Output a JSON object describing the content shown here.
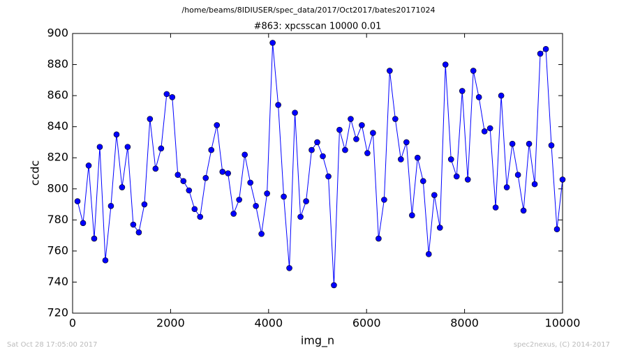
{
  "chart_data": {
    "type": "line",
    "suptitle": "/home/beams/8IDIUSER/spec_data/2017/Oct2017/bates20171024",
    "title": "#863: xpcsscan 10000 0.01",
    "x_label": "img_n",
    "y_label": "ccdc",
    "footer_left": "Sat Oct 28 17:05:00 2017",
    "footer_right": "spec2nexus, (C) 2014-2017",
    "x": [
      100,
      214,
      328,
      441,
      555,
      669,
      783,
      897,
      1010,
      1124,
      1238,
      1352,
      1466,
      1579,
      1693,
      1807,
      1921,
      2034,
      2148,
      2262,
      2376,
      2490,
      2603,
      2717,
      2831,
      2945,
      3059,
      3172,
      3286,
      3400,
      3514,
      3628,
      3741,
      3855,
      3969,
      4083,
      4197,
      4310,
      4424,
      4538,
      4652,
      4766,
      4879,
      4993,
      5107,
      5221,
      5334,
      5448,
      5562,
      5676,
      5790,
      5903,
      6017,
      6131,
      6245,
      6359,
      6472,
      6586,
      6700,
      6814,
      6928,
      7041,
      7155,
      7269,
      7383,
      7497,
      7610,
      7724,
      7838,
      7952,
      8066,
      8179,
      8293,
      8407,
      8521,
      8634,
      8748,
      8862,
      8976,
      9090,
      9203,
      9317,
      9431,
      9545,
      9659,
      9772,
      9886,
      10000
    ],
    "series": [
      {
        "name": "ccdc",
        "color": "#0000ff",
        "values": [
          792,
          778,
          815,
          768,
          827,
          754,
          789,
          835,
          801,
          827,
          777,
          772,
          790,
          845,
          813,
          826,
          861,
          859,
          809,
          805,
          799,
          787,
          782,
          807,
          825,
          841,
          811,
          810,
          784,
          793,
          822,
          804,
          789,
          771,
          797,
          894,
          854,
          795,
          749,
          849,
          782,
          792,
          825,
          830,
          821,
          808,
          738,
          838,
          825,
          845,
          832,
          841,
          823,
          836,
          768,
          793,
          876,
          845,
          819,
          830,
          783,
          820,
          805,
          758,
          796,
          775,
          880,
          819,
          808,
          863,
          806,
          876,
          859,
          837,
          839,
          788,
          860,
          801,
          829,
          809,
          786,
          829,
          803,
          887,
          890,
          828,
          774,
          806
        ]
      }
    ],
    "xlim": [
      0,
      10000
    ],
    "xticks": [
      0,
      2000,
      4000,
      6000,
      8000,
      10000
    ],
    "ylim": [
      720,
      900
    ],
    "yticks": [
      720,
      740,
      760,
      780,
      800,
      820,
      840,
      860,
      880,
      900
    ],
    "grid": false
  }
}
